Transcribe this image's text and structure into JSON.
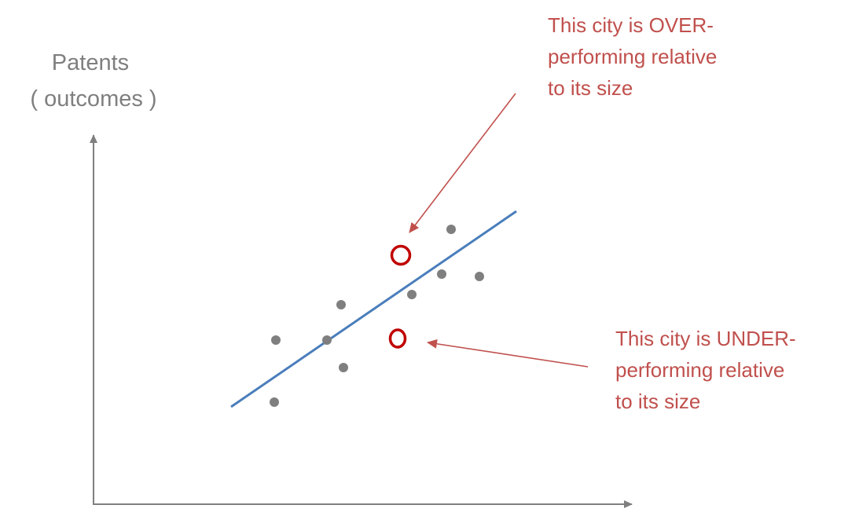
{
  "colors": {
    "axis": "#7f7f7f",
    "axis_label": "#7f7f7f",
    "points": "#7f7f7f",
    "trend_line": "#4a7ebb",
    "highlight_circle": "#c00000",
    "annotation_text": "#c0504d",
    "annotation_arrow": "#c0504d",
    "background": "#ffffff"
  },
  "y_axis": {
    "label_lines": [
      "Patents",
      "( outcomes )"
    ]
  },
  "annotations": {
    "over": {
      "lines": [
        "This city is OVER-",
        "performing relative",
        "to its size"
      ]
    },
    "under": {
      "lines": [
        "This city is UNDER-",
        "performing relative",
        "to its size"
      ]
    }
  },
  "points_count_visible": 10
}
